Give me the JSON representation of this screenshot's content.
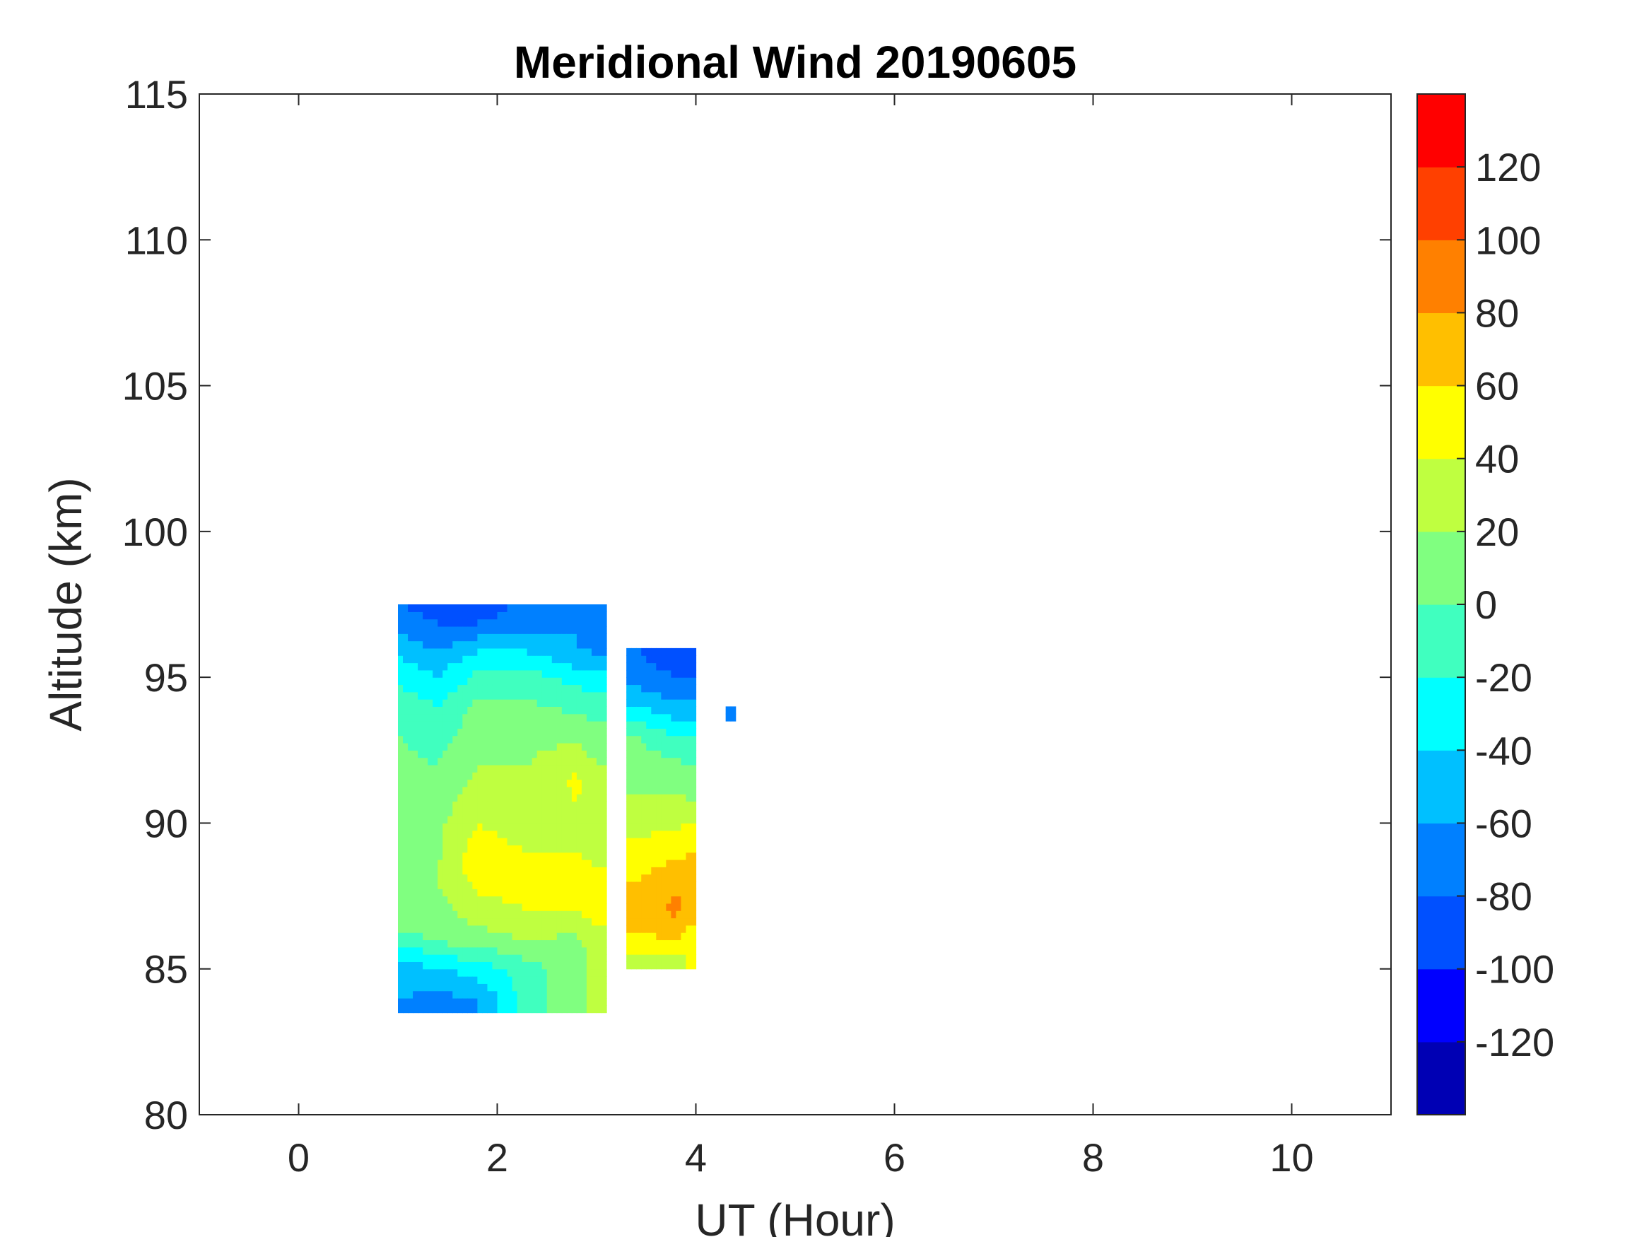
{
  "chart_data": {
    "type": "heatmap",
    "subtype": "filled-contour",
    "title": "Meridional Wind 20190605",
    "xlabel": "UT (Hour)",
    "ylabel": "Altitude (km)",
    "xlim": [
      -1,
      11
    ],
    "ylim": [
      80,
      115
    ],
    "xticks": [
      0,
      2,
      4,
      6,
      8,
      10
    ],
    "yticks": [
      80,
      85,
      90,
      95,
      100,
      105,
      110,
      115
    ],
    "grid": false,
    "colorbar": {
      "position": "right",
      "range": [
        -140,
        140
      ],
      "step": 20,
      "ticks": [
        -120,
        -100,
        -80,
        -60,
        -40,
        -20,
        0,
        20,
        40,
        60,
        80,
        100,
        120
      ],
      "colors": [
        "#0000b4",
        "#0000ff",
        "#0050ff",
        "#0080ff",
        "#00c0ff",
        "#00ffff",
        "#40ffbf",
        "#80ff80",
        "#bfff40",
        "#ffff00",
        "#ffbf00",
        "#ff8000",
        "#ff4000",
        "#ff0000"
      ]
    },
    "data_coverage": {
      "segments": [
        {
          "x_range": [
            1.0,
            3.1
          ],
          "alt_range": [
            83.5,
            97.5
          ]
        },
        {
          "x_range": [
            3.3,
            4.0
          ],
          "alt_range": [
            85.0,
            96.0
          ]
        },
        {
          "x_range": [
            4.3,
            4.4
          ],
          "alt_range": [
            93.5,
            94.0
          ]
        }
      ]
    },
    "profiles": [
      {
        "x": 1.0,
        "points": [
          [
            83,
            -70
          ],
          [
            84.5,
            -55
          ],
          [
            85.5,
            -35
          ],
          [
            86.5,
            5
          ],
          [
            88,
            20
          ],
          [
            90,
            15
          ],
          [
            92,
            5
          ],
          [
            94,
            -5
          ],
          [
            95.5,
            -35
          ],
          [
            96.5,
            -60
          ],
          [
            97.5,
            -80
          ]
        ]
      },
      {
        "x": 1.4,
        "points": [
          [
            84,
            -65
          ],
          [
            85,
            -45
          ],
          [
            86,
            5
          ],
          [
            88,
            20
          ],
          [
            90,
            15
          ],
          [
            92,
            0
          ],
          [
            94,
            -20
          ],
          [
            95.5,
            -50
          ],
          [
            96.5,
            -75
          ],
          [
            97.5,
            -90
          ]
        ]
      },
      {
        "x": 1.8,
        "points": [
          [
            84,
            -60
          ],
          [
            85,
            -30
          ],
          [
            86,
            10
          ],
          [
            87,
            30
          ],
          [
            88.5,
            55
          ],
          [
            90,
            40
          ],
          [
            92,
            20
          ],
          [
            94,
            5
          ],
          [
            95.5,
            -25
          ],
          [
            97,
            -85
          ],
          [
            98,
            -100
          ]
        ]
      },
      {
        "x": 2.3,
        "points": [
          [
            85,
            -10
          ],
          [
            86,
            20
          ],
          [
            87,
            40
          ],
          [
            88,
            50
          ],
          [
            90,
            30
          ],
          [
            92,
            20
          ],
          [
            93.5,
            10
          ],
          [
            95,
            -10
          ],
          [
            96.5,
            -60
          ],
          [
            97.5,
            -75
          ]
        ]
      },
      {
        "x": 2.8,
        "points": [
          [
            86,
            15
          ],
          [
            87,
            40
          ],
          [
            88,
            45
          ],
          [
            90,
            35
          ],
          [
            91.5,
            45
          ],
          [
            93,
            15
          ],
          [
            94.5,
            -15
          ],
          [
            96,
            -60
          ]
        ]
      },
      {
        "x": 3.0,
        "points": [
          [
            85.5,
            25
          ],
          [
            87,
            50
          ],
          [
            88.5,
            40
          ],
          [
            90,
            30
          ],
          [
            92,
            20
          ],
          [
            93.5,
            0
          ],
          [
            95,
            -30
          ],
          [
            96,
            -65
          ]
        ]
      },
      {
        "x": 3.4,
        "points": [
          [
            85,
            25
          ],
          [
            86,
            55
          ],
          [
            87,
            70
          ],
          [
            88,
            60
          ],
          [
            89.5,
            40
          ],
          [
            91,
            20
          ],
          [
            93,
            0
          ],
          [
            94,
            -40
          ],
          [
            95,
            -70
          ],
          [
            96,
            -80
          ]
        ]
      },
      {
        "x": 3.8,
        "points": [
          [
            85.5,
            35
          ],
          [
            86,
            60
          ],
          [
            87,
            85
          ],
          [
            88,
            75
          ],
          [
            89.5,
            45
          ],
          [
            91,
            20
          ],
          [
            92.5,
            -5
          ],
          [
            94,
            -55
          ],
          [
            95,
            -80
          ],
          [
            96,
            -95
          ]
        ]
      },
      {
        "x": 4.0,
        "points": [
          [
            86,
            45
          ],
          [
            87.5,
            80
          ],
          [
            89,
            60
          ],
          [
            90,
            40
          ],
          [
            91,
            15
          ],
          [
            93,
            -20
          ],
          [
            94.5,
            -70
          ],
          [
            96,
            -100
          ]
        ]
      },
      {
        "x": 4.35,
        "points": [
          [
            93.7,
            -70
          ]
        ]
      }
    ]
  }
}
